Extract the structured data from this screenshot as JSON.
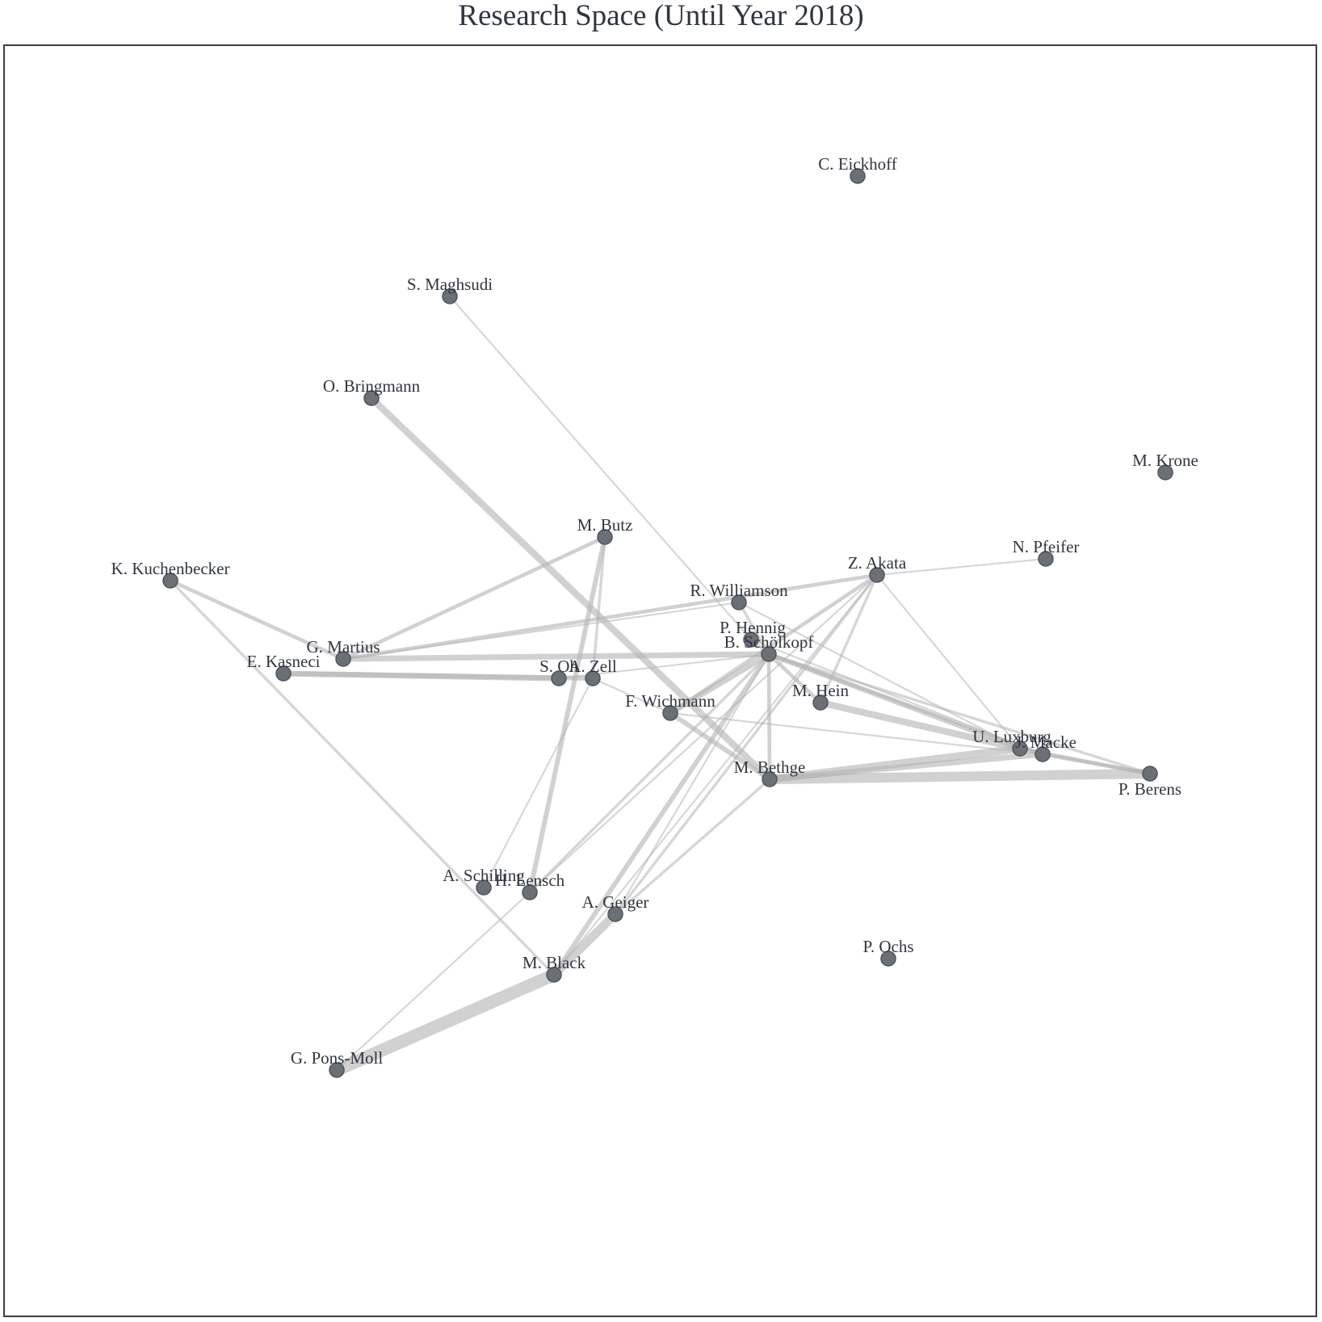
{
  "title": "Research Space (Until Year 2018)",
  "colors": {
    "node": "#6b7077",
    "node_stroke": "#4f545b",
    "edge": "#b5b5b5",
    "text": "#2f3540"
  },
  "nodes": [
    {
      "id": "eickhoff",
      "label": "C. Eickhoff"
    },
    {
      "id": "maghsudi",
      "label": "S. Maghsudi"
    },
    {
      "id": "bringmann",
      "label": "O. Bringmann"
    },
    {
      "id": "krone",
      "label": "M. Krone"
    },
    {
      "id": "butz",
      "label": "M. Butz"
    },
    {
      "id": "pfeifer",
      "label": "N. Pfeifer"
    },
    {
      "id": "kuchenbecker",
      "label": "K. Kuchenbecker"
    },
    {
      "id": "akata",
      "label": "Z. Akata"
    },
    {
      "id": "williamson",
      "label": "R. Williamson"
    },
    {
      "id": "hennig",
      "label": "P. Hennig"
    },
    {
      "id": "scholkopf",
      "label": "B. Schölkopf"
    },
    {
      "id": "martius",
      "label": "G. Martius"
    },
    {
      "id": "kasneci",
      "label": "E. Kasneci"
    },
    {
      "id": "oh",
      "label": "S. Oh"
    },
    {
      "id": "zell",
      "label": "A. Zell"
    },
    {
      "id": "hein",
      "label": "M. Hein"
    },
    {
      "id": "wichmann",
      "label": "F. Wichmann"
    },
    {
      "id": "luxburg",
      "label": "U. Luxburg"
    },
    {
      "id": "macke",
      "label": "J. Macke"
    },
    {
      "id": "bethge",
      "label": "M. Bethge"
    },
    {
      "id": "berens",
      "label": "P. Berens"
    },
    {
      "id": "schilling",
      "label": "A. Schilling"
    },
    {
      "id": "lensch",
      "label": "H. Lensch"
    },
    {
      "id": "geiger",
      "label": "A. Geiger"
    },
    {
      "id": "ochs",
      "label": "P. Ochs"
    },
    {
      "id": "black",
      "label": "M. Black"
    },
    {
      "id": "ponsmoll",
      "label": "G. Pons-Moll"
    }
  ],
  "edges": [
    {
      "source": "maghsudi",
      "target": "hennig",
      "weight": 1
    },
    {
      "source": "bringmann",
      "target": "bethge",
      "weight": 6
    },
    {
      "source": "butz",
      "target": "martius",
      "weight": 3
    },
    {
      "source": "butz",
      "target": "lensch",
      "weight": 4
    },
    {
      "source": "butz",
      "target": "zell",
      "weight": 2
    },
    {
      "source": "kuchenbecker",
      "target": "martius",
      "weight": 3
    },
    {
      "source": "kuchenbecker",
      "target": "black",
      "weight": 2
    },
    {
      "source": "martius",
      "target": "akata",
      "weight": 3
    },
    {
      "source": "martius",
      "target": "scholkopf",
      "weight": 5
    },
    {
      "source": "martius",
      "target": "williamson",
      "weight": 1
    },
    {
      "source": "kasneci",
      "target": "oh",
      "weight": 5
    },
    {
      "source": "kasneci",
      "target": "zell",
      "weight": 4
    },
    {
      "source": "akata",
      "target": "pfeifer",
      "weight": 1
    },
    {
      "source": "akata",
      "target": "hein",
      "weight": 2
    },
    {
      "source": "akata",
      "target": "luxburg",
      "weight": 1
    },
    {
      "source": "akata",
      "target": "lensch",
      "weight": 1
    },
    {
      "source": "akata",
      "target": "geiger",
      "weight": 2
    },
    {
      "source": "akata",
      "target": "wichmann",
      "weight": 3
    },
    {
      "source": "akata",
      "target": "black",
      "weight": 1
    },
    {
      "source": "williamson",
      "target": "scholkopf",
      "weight": 2
    },
    {
      "source": "williamson",
      "target": "luxburg",
      "weight": 1
    },
    {
      "source": "hennig",
      "target": "scholkopf",
      "weight": 2
    },
    {
      "source": "hennig",
      "target": "macke",
      "weight": 1
    },
    {
      "source": "scholkopf",
      "target": "wichmann",
      "weight": 5
    },
    {
      "source": "scholkopf",
      "target": "hein",
      "weight": 3
    },
    {
      "source": "scholkopf",
      "target": "luxburg",
      "weight": 4
    },
    {
      "source": "scholkopf",
      "target": "macke",
      "weight": 3
    },
    {
      "source": "scholkopf",
      "target": "berens",
      "weight": 2
    },
    {
      "source": "scholkopf",
      "target": "bethge",
      "weight": 3
    },
    {
      "source": "scholkopf",
      "target": "black",
      "weight": 4
    },
    {
      "source": "scholkopf",
      "target": "lensch",
      "weight": 2
    },
    {
      "source": "scholkopf",
      "target": "geiger",
      "weight": 1
    },
    {
      "source": "scholkopf",
      "target": "oh",
      "weight": 1
    },
    {
      "source": "hein",
      "target": "luxburg",
      "weight": 6
    },
    {
      "source": "wichmann",
      "target": "bethge",
      "weight": 4
    },
    {
      "source": "wichmann",
      "target": "macke",
      "weight": 1
    },
    {
      "source": "wichmann",
      "target": "zell",
      "weight": 1
    },
    {
      "source": "bethge",
      "target": "luxburg",
      "weight": 7
    },
    {
      "source": "bethge",
      "target": "berens",
      "weight": 9
    },
    {
      "source": "bethge",
      "target": "macke",
      "weight": 5
    },
    {
      "source": "bethge",
      "target": "geiger",
      "weight": 2
    },
    {
      "source": "luxburg",
      "target": "berens",
      "weight": 3
    },
    {
      "source": "macke",
      "target": "berens",
      "weight": 3
    },
    {
      "source": "geiger",
      "target": "black",
      "weight": 8
    },
    {
      "source": "black",
      "target": "ponsmoll",
      "weight": 12
    },
    {
      "source": "schilling",
      "target": "zell",
      "weight": 1
    },
    {
      "source": "ponsmoll",
      "target": "lensch",
      "weight": 1
    }
  ]
}
